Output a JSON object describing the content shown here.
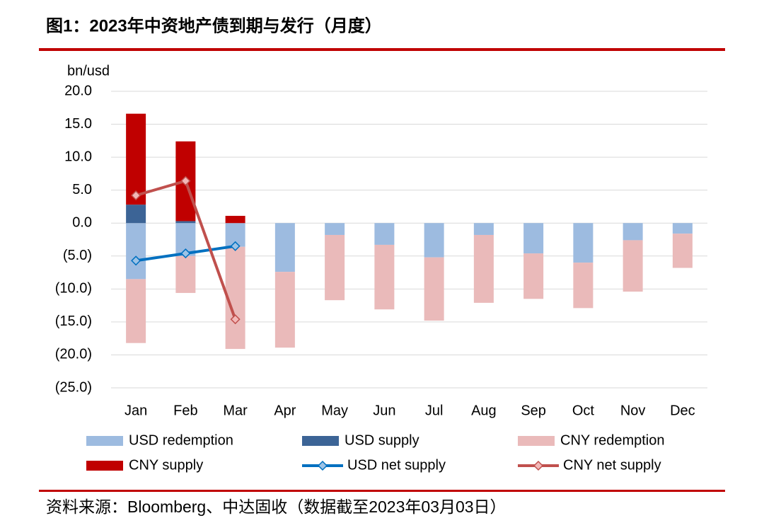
{
  "chart_data": {
    "type": "bar",
    "title": "图1：2023年中资地产债到期与发行（月度）",
    "y_label": "bn/usd",
    "source": "资料来源：Bloomberg、中达固收（数据截至2023年03月03日）",
    "categories": [
      "Jan",
      "Feb",
      "Mar",
      "Apr",
      "May",
      "Jun",
      "Jul",
      "Aug",
      "Sep",
      "Oct",
      "Nov",
      "Dec"
    ],
    "series": [
      {
        "name": "USD redemption",
        "type": "bar",
        "color": "#9dbbe0",
        "values": [
          -8.5,
          -5.0,
          -3.6,
          -7.4,
          -1.8,
          -3.3,
          -5.2,
          -1.8,
          -4.6,
          -6.0,
          -2.6,
          -1.6
        ]
      },
      {
        "name": "USD supply",
        "type": "bar",
        "color": "#3c6496",
        "values": [
          2.8,
          0.3,
          0,
          0,
          0,
          0,
          0,
          0,
          0,
          0,
          0,
          0
        ]
      },
      {
        "name": "CNY redemption",
        "type": "bar",
        "color": "#eababa",
        "values": [
          -9.7,
          -5.6,
          -15.5,
          -11.5,
          -9.9,
          -9.8,
          -9.6,
          -10.3,
          -6.9,
          -6.9,
          -7.8,
          -5.2
        ]
      },
      {
        "name": "CNY supply",
        "type": "bar",
        "color": "#c00000",
        "values": [
          13.8,
          12.1,
          1.1,
          0,
          0,
          0,
          0,
          0,
          0,
          0,
          0,
          0
        ]
      },
      {
        "name": "USD net supply",
        "type": "line",
        "color": "#0070c0",
        "marker_fill": "#9dc3e6",
        "values": [
          -5.7,
          -4.6,
          -3.5,
          null,
          null,
          null,
          null,
          null,
          null,
          null,
          null,
          null
        ]
      },
      {
        "name": "CNY net supply",
        "type": "line",
        "color": "#c0504d",
        "marker_fill": "#f2b8b8",
        "values": [
          4.2,
          6.4,
          -14.6,
          null,
          null,
          null,
          null,
          null,
          null,
          null,
          null,
          null
        ]
      }
    ],
    "ylim": [
      -25,
      20
    ],
    "yticks": [
      {
        "value": -25,
        "label": "(25.0)"
      },
      {
        "value": -20,
        "label": "(20.0)"
      },
      {
        "value": -15,
        "label": "(15.0)"
      },
      {
        "value": -10,
        "label": "(10.0)"
      },
      {
        "value": -5,
        "label": "(5.0)"
      },
      {
        "value": 0,
        "label": "0.0"
      },
      {
        "value": 5,
        "label": "5.0"
      },
      {
        "value": 10,
        "label": "10.0"
      },
      {
        "value": 15,
        "label": "15.0"
      },
      {
        "value": 20,
        "label": "20.0"
      }
    ],
    "negative_tick_color": "#c00000",
    "grid": true
  }
}
